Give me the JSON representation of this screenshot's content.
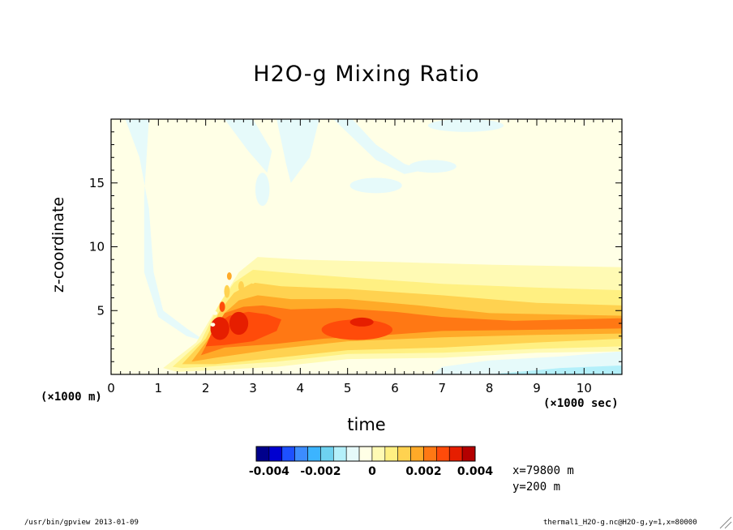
{
  "chart_data": {
    "type": "heatmap",
    "title": "H2O-g Mixing Ratio",
    "xlabel": "time",
    "ylabel": "z-coordinate",
    "x_unit_label": "(×1000 sec)",
    "y_unit_label": "(×1000 m)",
    "xlim": [
      0,
      10.8
    ],
    "ylim": [
      0,
      20
    ],
    "x_ticks": [
      "0",
      "1",
      "2",
      "3",
      "4",
      "5",
      "6",
      "7",
      "8",
      "9",
      "10"
    ],
    "y_ticks": [
      "5",
      "10",
      "15"
    ],
    "colorbar": {
      "levels": [
        -0.0045,
        -0.004,
        -0.0035,
        -0.003,
        -0.0025,
        -0.002,
        -0.0015,
        -0.001,
        -0.0005,
        0,
        0.0005,
        0.001,
        0.0015,
        0.002,
        0.0025,
        0.003,
        0.0035,
        0.004,
        0.0045
      ],
      "colors": [
        "#00008c",
        "#0000d0",
        "#1d50ff",
        "#3c8cff",
        "#3cb4ff",
        "#6ed2f0",
        "#b4f0fa",
        "#e6fafa",
        "#ffffe6",
        "#fffab4",
        "#fff082",
        "#ffd250",
        "#ffaa28",
        "#ff7814",
        "#ff4b0a",
        "#e61e00",
        "#b40000"
      ],
      "tick_labels": [
        "-0.004",
        "-0.002",
        "0",
        "0.002",
        "0.004"
      ]
    },
    "annotation_x": "x=79800 m",
    "annotation_y": "y=200 m"
  },
  "footer": {
    "left": "/usr/bin/gpview  2013-01-09",
    "right": "thermal1_H2O-g.nc@H2O-g,y=1,x=80000"
  }
}
